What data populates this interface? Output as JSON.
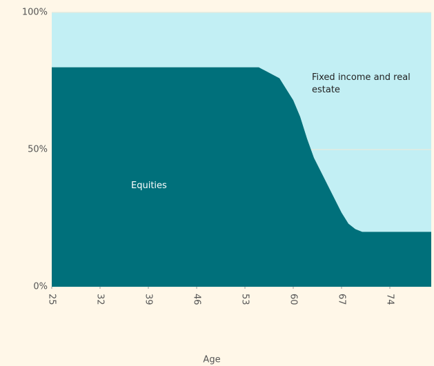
{
  "chart_data": {
    "type": "stacked-area",
    "x_label": "Age",
    "x": [
      25,
      55,
      58,
      60,
      61,
      62,
      63,
      64,
      65,
      66,
      67,
      68,
      69,
      70,
      80
    ],
    "series": [
      {
        "name": "Equities",
        "color": "#00707b",
        "values": [
          80,
          80,
          76,
          68,
          62,
          54,
          47,
          42,
          37,
          32,
          27,
          23,
          21,
          20,
          20
        ]
      },
      {
        "name": "Fixed income and real estate",
        "color": "#c2eff4",
        "values": [
          20,
          20,
          24,
          32,
          38,
          46,
          53,
          58,
          63,
          68,
          73,
          77,
          79,
          80,
          80
        ]
      }
    ],
    "xlim": [
      25,
      80
    ],
    "xticks": [
      25,
      32,
      39,
      46,
      53,
      60,
      67,
      74
    ],
    "ylim": [
      0,
      100
    ],
    "yticks": [
      {
        "value": 0,
        "label": "0%"
      },
      {
        "value": 50,
        "label": "50%"
      },
      {
        "value": 100,
        "label": "100%"
      }
    ],
    "grid": true
  }
}
